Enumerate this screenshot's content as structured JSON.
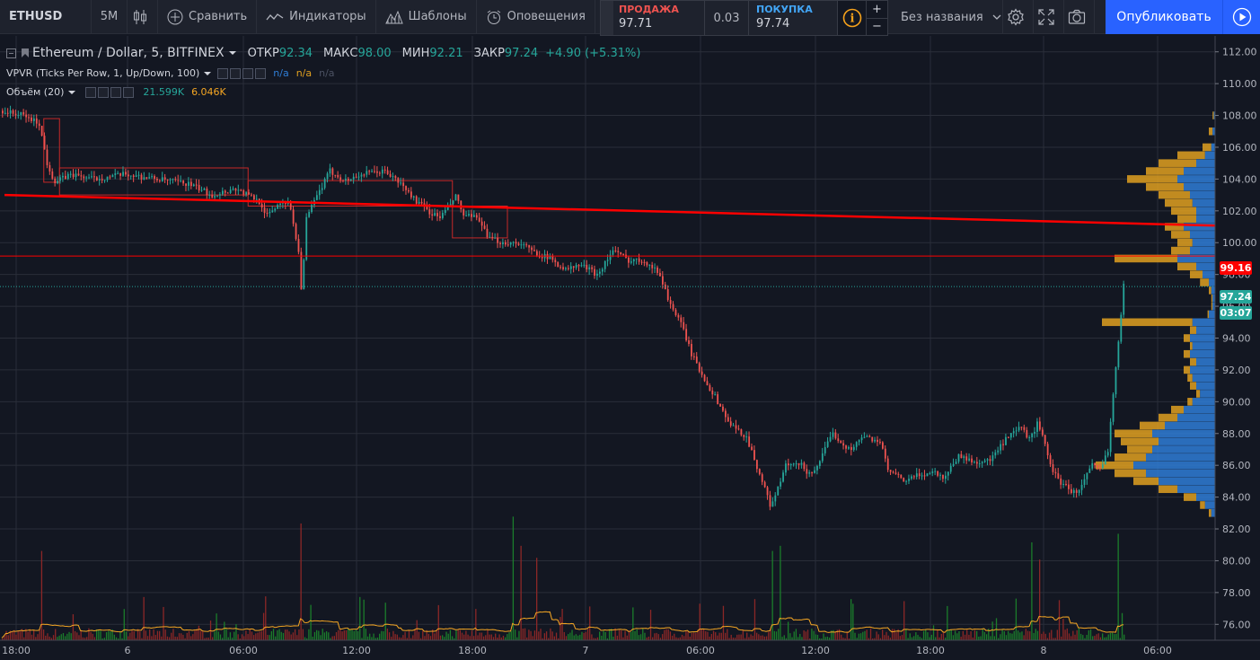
{
  "toolbar": {
    "symbol": "ETHUSD",
    "interval": "5M",
    "compare_label": "Сравнить",
    "indicators_label": "Индикаторы",
    "templates_label": "Шаблоны",
    "alerts_label": "Оповещения",
    "layout_name": "Без названия",
    "publish_label": "Опубликовать"
  },
  "trade": {
    "sell_label": "ПРОДАЖА",
    "sell_price": "97.71",
    "spread": "0.03",
    "buy_label": "ПОКУПКА",
    "buy_price": "97.74",
    "plus": "+",
    "minus": "−",
    "info_glyph": "i",
    "sell_color": "#ef5350",
    "buy_color": "#42a5f5"
  },
  "legend": {
    "title": "Ethereum / Dollar, 5, BITFINEX",
    "open_label": "ОТКР",
    "open": "92.34",
    "high_label": "МАКС",
    "high": "98.00",
    "low_label": "МИН",
    "low": "92.21",
    "close_label": "ЗАКР",
    "close": "97.24",
    "change": "+4.90 (+5.31%)",
    "vpvr_title": "VPVR (Ticks Per Row, 1, Up/Down, 100)",
    "vpvr_v1": "n/a",
    "vpvr_v2": "n/a",
    "vpvr_v3": "n/a",
    "volume_title": "Объём (20)",
    "volume_v1": "21.599K",
    "volume_v2": "6.046K"
  },
  "price_labels": {
    "hline": "99.16",
    "last": "97.24",
    "countdown": "03:07"
  },
  "colors": {
    "up": "#26a69a",
    "down": "#ef5350",
    "background": "#131722",
    "grid": "#2a2e39",
    "trendline": "#ff0000",
    "vp_up": "#2f7dd6",
    "vp_down": "#e0a020",
    "volume_ma": "#f5a623"
  },
  "icons": {
    "compare": "plus-circle-icon",
    "indicators": "wave-icon",
    "templates": "templates-icon",
    "alerts": "alarm-clock-icon",
    "settings": "gear-icon",
    "fullscreen": "fullscreen-icon",
    "snapshot": "camera-icon",
    "play": "play-icon"
  },
  "chart_data": {
    "type": "candlestick",
    "title": "Ethereum / Dollar, 5, BITFINEX",
    "y_range": [
      75.0,
      113.0
    ],
    "y_ticks": [
      "76.00",
      "78.00",
      "80.00",
      "82.00",
      "84.00",
      "86.00",
      "88.00",
      "90.00",
      "92.00",
      "94.00",
      "96.00",
      "98.00",
      "100.00",
      "102.00",
      "104.00",
      "106.00",
      "108.00",
      "110.00",
      "112.00"
    ],
    "x_ticks": [
      "18:00",
      "6",
      "06:00",
      "12:00",
      "18:00",
      "7",
      "06:00",
      "12:00",
      "18:00",
      "8",
      "06:00"
    ],
    "price_path": [
      [
        0,
        108.3
      ],
      [
        3,
        108.0
      ],
      [
        5,
        107.5
      ],
      [
        6,
        105.0
      ],
      [
        7,
        103.8
      ],
      [
        9,
        104.3
      ],
      [
        12,
        104.0
      ],
      [
        16,
        104.3
      ],
      [
        20,
        104.0
      ],
      [
        24,
        103.7
      ],
      [
        27,
        103.0
      ],
      [
        30,
        103.4
      ],
      [
        33,
        102.6
      ],
      [
        34,
        101.7
      ],
      [
        36,
        102.7
      ],
      [
        37,
        102.2
      ],
      [
        38,
        99.4
      ],
      [
        38.4,
        96.8
      ],
      [
        39,
        101.5
      ],
      [
        40,
        102.6
      ],
      [
        42,
        104.5
      ],
      [
        44,
        103.9
      ],
      [
        46,
        104.3
      ],
      [
        49,
        104.5
      ],
      [
        51,
        103.7
      ],
      [
        53,
        102.6
      ],
      [
        55,
        101.8
      ],
      [
        56,
        101.6
      ],
      [
        57,
        102.2
      ],
      [
        58,
        102.9
      ],
      [
        59,
        101.7
      ],
      [
        61,
        101.5
      ],
      [
        62,
        100.3
      ],
      [
        64,
        100.0
      ],
      [
        66,
        100.0
      ],
      [
        68,
        99.4
      ],
      [
        70,
        99.0
      ],
      [
        72,
        98.3
      ],
      [
        74,
        98.6
      ],
      [
        76,
        98.0
      ],
      [
        78,
        99.5
      ],
      [
        80,
        98.9
      ],
      [
        82,
        98.9
      ],
      [
        84,
        98.0
      ],
      [
        85,
        96.5
      ],
      [
        87,
        94.5
      ],
      [
        88,
        93.0
      ],
      [
        89,
        92.0
      ],
      [
        91,
        90.3
      ],
      [
        93,
        88.5
      ],
      [
        95,
        87.8
      ],
      [
        97,
        85.0
      ],
      [
        98,
        83.5
      ],
      [
        99,
        84.5
      ],
      [
        100,
        86.0
      ],
      [
        102,
        86.0
      ],
      [
        103,
        85.4
      ],
      [
        104,
        86.0
      ],
      [
        106,
        88.0
      ],
      [
        108,
        87.0
      ],
      [
        110,
        87.8
      ],
      [
        112,
        87.5
      ],
      [
        113,
        85.7
      ],
      [
        115,
        85.0
      ],
      [
        117,
        85.4
      ],
      [
        119,
        85.6
      ],
      [
        120,
        85.2
      ],
      [
        122,
        86.6
      ],
      [
        124,
        86.2
      ],
      [
        126,
        86.3
      ],
      [
        128,
        87.6
      ],
      [
        130,
        88.4
      ],
      [
        131,
        87.6
      ],
      [
        132,
        88.6
      ],
      [
        133,
        87.3
      ],
      [
        134,
        85.6
      ],
      [
        135,
        84.9
      ],
      [
        137,
        84.2
      ],
      [
        139,
        86.0
      ],
      [
        140,
        85.7
      ],
      [
        141,
        87.0
      ],
      [
        142,
        92.3
      ],
      [
        143,
        97.24
      ]
    ],
    "bars_total": 143,
    "volume_range": [
      0,
      80
    ],
    "volume_peaks": [
      [
        5,
        52
      ],
      [
        38,
        68
      ],
      [
        65,
        72
      ],
      [
        66,
        55
      ],
      [
        68,
        48
      ],
      [
        98,
        52
      ],
      [
        99,
        55
      ],
      [
        131,
        57
      ],
      [
        132,
        47
      ],
      [
        142,
        62
      ]
    ],
    "horizontal_line": 99.16,
    "trendline": [
      [
        0,
        103.0
      ],
      [
        168,
        100.9
      ]
    ],
    "red_boxes": [
      [
        5,
        7,
        103.8,
        107.8
      ],
      [
        7,
        31,
        103.0,
        104.7
      ],
      [
        31,
        57,
        102.3,
        103.9
      ],
      [
        57,
        64,
        100.3,
        102.3
      ]
    ],
    "volume_profile": [
      [
        108.0,
        0.01,
        0.02
      ],
      [
        107.0,
        0.02,
        0.05
      ],
      [
        106.0,
        0.03,
        0.1
      ],
      [
        105.5,
        0.08,
        0.3
      ],
      [
        105.0,
        0.15,
        0.45
      ],
      [
        104.5,
        0.25,
        0.55
      ],
      [
        104.0,
        0.3,
        0.7
      ],
      [
        103.5,
        0.25,
        0.55
      ],
      [
        103.0,
        0.2,
        0.45
      ],
      [
        102.5,
        0.18,
        0.4
      ],
      [
        102.0,
        0.15,
        0.35
      ],
      [
        101.5,
        0.15,
        0.3
      ],
      [
        101.0,
        0.25,
        0.4
      ],
      [
        100.5,
        0.2,
        0.35
      ],
      [
        100.0,
        0.18,
        0.3
      ],
      [
        99.5,
        0.2,
        0.35
      ],
      [
        99.0,
        0.3,
        0.8
      ],
      [
        98.5,
        0.15,
        0.3
      ],
      [
        98.0,
        0.1,
        0.2
      ],
      [
        97.5,
        0.05,
        0.12
      ],
      [
        97.0,
        0.03,
        0.05
      ],
      [
        96.5,
        0.02,
        0.03
      ],
      [
        96.0,
        0.02,
        0.03
      ],
      [
        95.5,
        0.05,
        0.06
      ],
      [
        95.0,
        0.18,
        0.9
      ],
      [
        94.5,
        0.15,
        0.2
      ],
      [
        94.0,
        0.2,
        0.25
      ],
      [
        93.5,
        0.18,
        0.2
      ],
      [
        93.0,
        0.2,
        0.25
      ],
      [
        92.5,
        0.15,
        0.2
      ],
      [
        92.0,
        0.2,
        0.25
      ],
      [
        91.5,
        0.18,
        0.22
      ],
      [
        91.0,
        0.15,
        0.2
      ],
      [
        90.5,
        0.12,
        0.15
      ],
      [
        90.0,
        0.18,
        0.22
      ],
      [
        89.5,
        0.25,
        0.35
      ],
      [
        89.0,
        0.3,
        0.45
      ],
      [
        88.5,
        0.4,
        0.6
      ],
      [
        88.0,
        0.5,
        0.8
      ],
      [
        87.5,
        0.45,
        0.75
      ],
      [
        87.0,
        0.5,
        0.7
      ],
      [
        86.5,
        0.55,
        0.8
      ],
      [
        86.0,
        0.65,
        0.95
      ],
      [
        85.5,
        0.55,
        0.8
      ],
      [
        85.0,
        0.45,
        0.65
      ],
      [
        84.5,
        0.3,
        0.45
      ],
      [
        84.0,
        0.15,
        0.25
      ],
      [
        83.5,
        0.08,
        0.12
      ],
      [
        83.0,
        0.03,
        0.05
      ]
    ]
  }
}
